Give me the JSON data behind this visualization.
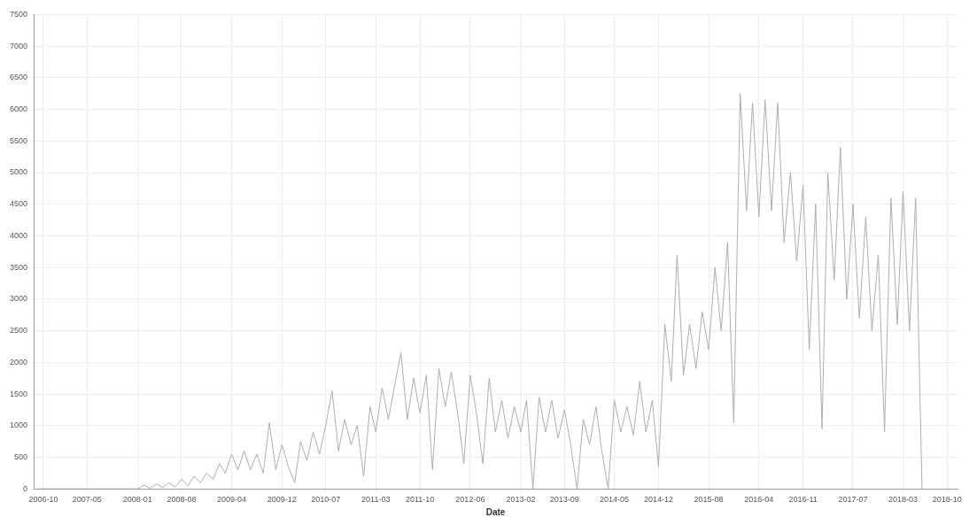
{
  "chart_data": {
    "type": "line",
    "xlabel": "Date",
    "xlim": [
      "2006-08-15",
      "2018-11-20"
    ],
    "xticks": [
      "2006-10",
      "2007-05",
      "2008-01",
      "2008-08",
      "2009-04",
      "2009-12",
      "2010-07",
      "2011-03",
      "2011-10",
      "2012-06",
      "2013-02",
      "2013-09",
      "2014-05",
      "2014-12",
      "2015-08",
      "2016-04",
      "2016-11",
      "2017-07",
      "2018-03",
      "2018-10"
    ],
    "ylim": [
      0,
      7500
    ],
    "yticks": [
      0,
      500,
      1000,
      1500,
      2000,
      2500,
      3000,
      3500,
      4000,
      4500,
      5000,
      5500,
      6000,
      6500,
      7000,
      7500
    ],
    "grid": true,
    "marker": "none",
    "line_style": "solid",
    "series": [
      {
        "color": "#a9adb5",
        "x": [
          "2006-09-01",
          "2007-12-01",
          "2008-01-01",
          "2008-02-01",
          "2008-03-01",
          "2008-04-01",
          "2008-05-01",
          "2008-06-01",
          "2008-07-01",
          "2008-08-01",
          "2008-09-01",
          "2008-10-01",
          "2008-11-01",
          "2008-12-01",
          "2009-01-01",
          "2009-02-01",
          "2009-03-01",
          "2009-04-01",
          "2009-05-01",
          "2009-06-01",
          "2009-07-01",
          "2009-08-01",
          "2009-09-01",
          "2009-10-01",
          "2009-11-01",
          "2009-12-01",
          "2010-01-01",
          "2010-02-01",
          "2010-03-01",
          "2010-04-01",
          "2010-05-01",
          "2010-06-01",
          "2010-07-01",
          "2010-08-01",
          "2010-09-01",
          "2010-10-01",
          "2010-11-01",
          "2010-12-01",
          "2011-01-01",
          "2011-02-01",
          "2011-03-01",
          "2011-04-01",
          "2011-05-01",
          "2011-06-01",
          "2011-07-01",
          "2011-08-01",
          "2011-09-01",
          "2011-10-01",
          "2011-11-01",
          "2011-12-01",
          "2012-01-01",
          "2012-02-01",
          "2012-03-01",
          "2012-04-01",
          "2012-05-01",
          "2012-06-01",
          "2012-07-01",
          "2012-08-01",
          "2012-09-01",
          "2012-10-01",
          "2012-11-01",
          "2012-12-01",
          "2013-01-01",
          "2013-02-01",
          "2013-03-01",
          "2013-04-01",
          "2013-05-01",
          "2013-06-01",
          "2013-07-01",
          "2013-08-01",
          "2013-09-01",
          "2013-10-01",
          "2013-11-01",
          "2013-12-01",
          "2014-01-01",
          "2014-02-01",
          "2014-03-01",
          "2014-04-01",
          "2014-05-01",
          "2014-06-01",
          "2014-07-01",
          "2014-08-01",
          "2014-09-01",
          "2014-10-01",
          "2014-11-01",
          "2014-12-01",
          "2015-01-01",
          "2015-02-01",
          "2015-03-01",
          "2015-04-01",
          "2015-05-01",
          "2015-06-01",
          "2015-07-01",
          "2015-08-01",
          "2015-09-01",
          "2015-10-01",
          "2015-11-01",
          "2015-12-01",
          "2016-01-01",
          "2016-02-01",
          "2016-03-01",
          "2016-04-01",
          "2016-05-01",
          "2016-06-01",
          "2016-07-01",
          "2016-08-01",
          "2016-09-01",
          "2016-10-01",
          "2016-11-01",
          "2016-12-01",
          "2017-01-01",
          "2017-02-01",
          "2017-03-01",
          "2017-04-01",
          "2017-05-01",
          "2017-06-01",
          "2017-07-01",
          "2017-08-01",
          "2017-09-01",
          "2017-10-01",
          "2017-11-01",
          "2017-12-01",
          "2018-01-01",
          "2018-02-01",
          "2018-03-01",
          "2018-04-01",
          "2018-05-01",
          "2018-06-01"
        ],
        "values": [
          0,
          0,
          0,
          60,
          10,
          80,
          20,
          100,
          30,
          150,
          50,
          200,
          100,
          250,
          150,
          400,
          250,
          550,
          300,
          600,
          300,
          550,
          250,
          1050,
          300,
          700,
          350,
          100,
          750,
          450,
          900,
          550,
          1000,
          1550,
          600,
          1100,
          700,
          1000,
          200,
          1300,
          900,
          1600,
          1100,
          1650,
          2150,
          1100,
          1750,
          1200,
          1800,
          300,
          1900,
          1300,
          1850,
          1200,
          400,
          1800,
          1200,
          400,
          1750,
          900,
          1400,
          800,
          1300,
          900,
          1400,
          0,
          1450,
          900,
          1400,
          800,
          1250,
          700,
          0,
          1100,
          700,
          1300,
          600,
          0,
          1400,
          900,
          1300,
          850,
          1700,
          900,
          1400,
          350,
          2600,
          1700,
          3700,
          1800,
          2600,
          1900,
          2800,
          2200,
          3500,
          2500,
          3900,
          1050,
          6250,
          4400,
          6100,
          4300,
          6150,
          4400,
          6100,
          3900,
          5000,
          3600,
          4800,
          2200,
          4500,
          950,
          5000,
          3300,
          5400,
          3000,
          4500,
          2700,
          4300,
          2500,
          3700,
          900,
          4600,
          2600,
          4700,
          2500,
          4600,
          0
        ]
      }
    ]
  }
}
